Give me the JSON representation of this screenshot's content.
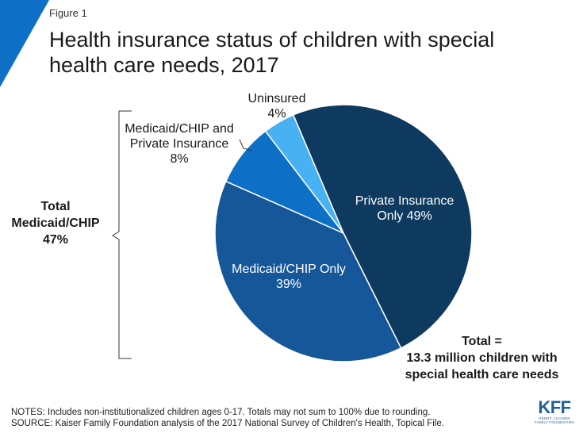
{
  "figure_label": "Figure 1",
  "title": "Health insurance status of children with special health care needs, 2017",
  "chart_data": {
    "type": "pie",
    "title": "Health insurance status of children with special health care needs, 2017",
    "slices": [
      {
        "name": "Private Insurance Only",
        "value": 49,
        "label_lines": [
          "Private Insurance",
          "Only 49%"
        ],
        "color": "#0d3a5e"
      },
      {
        "name": "Medicaid/CHIP Only",
        "value": 39,
        "label_lines": [
          "Medicaid/CHIP Only",
          "39%"
        ],
        "color": "#155799"
      },
      {
        "name": "Medicaid/CHIP and Private Insurance",
        "value": 8,
        "label_lines": [
          "Medicaid/CHIP and",
          "Private Insurance",
          "8%"
        ],
        "color": "#0d6fc5"
      },
      {
        "name": "Uninsured",
        "value": 4,
        "label_lines": [
          "Uninsured",
          "4%"
        ],
        "color": "#47b1f4"
      }
    ],
    "annotations": {
      "total_medicaid": [
        "Total",
        "Medicaid/CHIP",
        "47%"
      ],
      "total": [
        "Total =",
        "13.3 million children with",
        "special health care needs"
      ]
    }
  },
  "notes": "NOTES: Includes non-institutionalized children ages 0-17. Totals may not sum to 100% due to rounding.",
  "source": "SOURCE: Kaiser Family Foundation analysis of the 2017 National Survey of Children's Health, Topical File.",
  "logo": {
    "text": "KFF",
    "sub1": "HENRY J KAISER",
    "sub2": "FAMILY FOUNDATION"
  },
  "colors": {
    "accent": "#0d6fc5",
    "logo": "#1f5f9e"
  }
}
